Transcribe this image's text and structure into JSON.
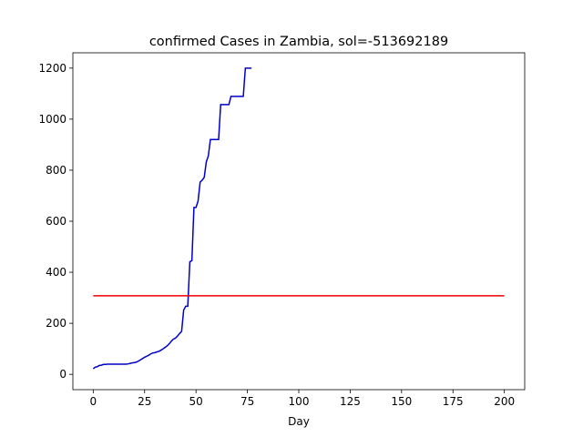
{
  "chart_data": {
    "type": "line",
    "title": "confirmed Cases in Zambia, sol=-513692189",
    "xlabel": "Day",
    "ylabel": "",
    "xlim": [
      -9.9,
      209.9
    ],
    "ylim": [
      -60,
      1260
    ],
    "x_ticks": [
      0,
      25,
      50,
      75,
      100,
      125,
      150,
      175,
      200
    ],
    "y_ticks": [
      0,
      200,
      400,
      600,
      800,
      1000,
      1200
    ],
    "grid": false,
    "series": [
      {
        "color": "#0000cc",
        "x": [
          0,
          1,
          2,
          3,
          4,
          5,
          6,
          7,
          8,
          9,
          10,
          11,
          12,
          13,
          14,
          15,
          16,
          17,
          18,
          19,
          20,
          21,
          22,
          23,
          24,
          25,
          26,
          27,
          28,
          29,
          30,
          31,
          32,
          33,
          34,
          35,
          36,
          37,
          38,
          39,
          40,
          41,
          42,
          43,
          44,
          45,
          46,
          47,
          48,
          49,
          50,
          51,
          52,
          53,
          54,
          55,
          56,
          57,
          58,
          59,
          60,
          61,
          62,
          63,
          64,
          65,
          66,
          67,
          68,
          69,
          70,
          71,
          72,
          73,
          74,
          75,
          76,
          77
        ],
        "y": [
          22,
          28,
          30,
          35,
          36,
          39,
          39,
          40,
          40,
          40,
          40,
          40,
          40,
          40,
          40,
          40,
          40,
          41,
          43,
          45,
          46,
          48,
          52,
          57,
          62,
          67,
          71,
          75,
          80,
          84,
          85,
          88,
          90,
          95,
          100,
          106,
          112,
          120,
          130,
          138,
          142,
          150,
          160,
          168,
          252,
          267,
          267,
          441,
          446,
          654,
          654,
          679,
          753,
          761,
          772,
          832,
          856,
          920,
          920,
          920,
          920,
          920,
          1057,
          1057,
          1057,
          1057,
          1057,
          1089,
          1089,
          1089,
          1089,
          1089,
          1089,
          1089,
          1200,
          1200,
          1200,
          1200
        ]
      },
      {
        "color": "#ee0000",
        "x": [
          0,
          200
        ],
        "y": [
          308,
          308
        ]
      }
    ]
  }
}
